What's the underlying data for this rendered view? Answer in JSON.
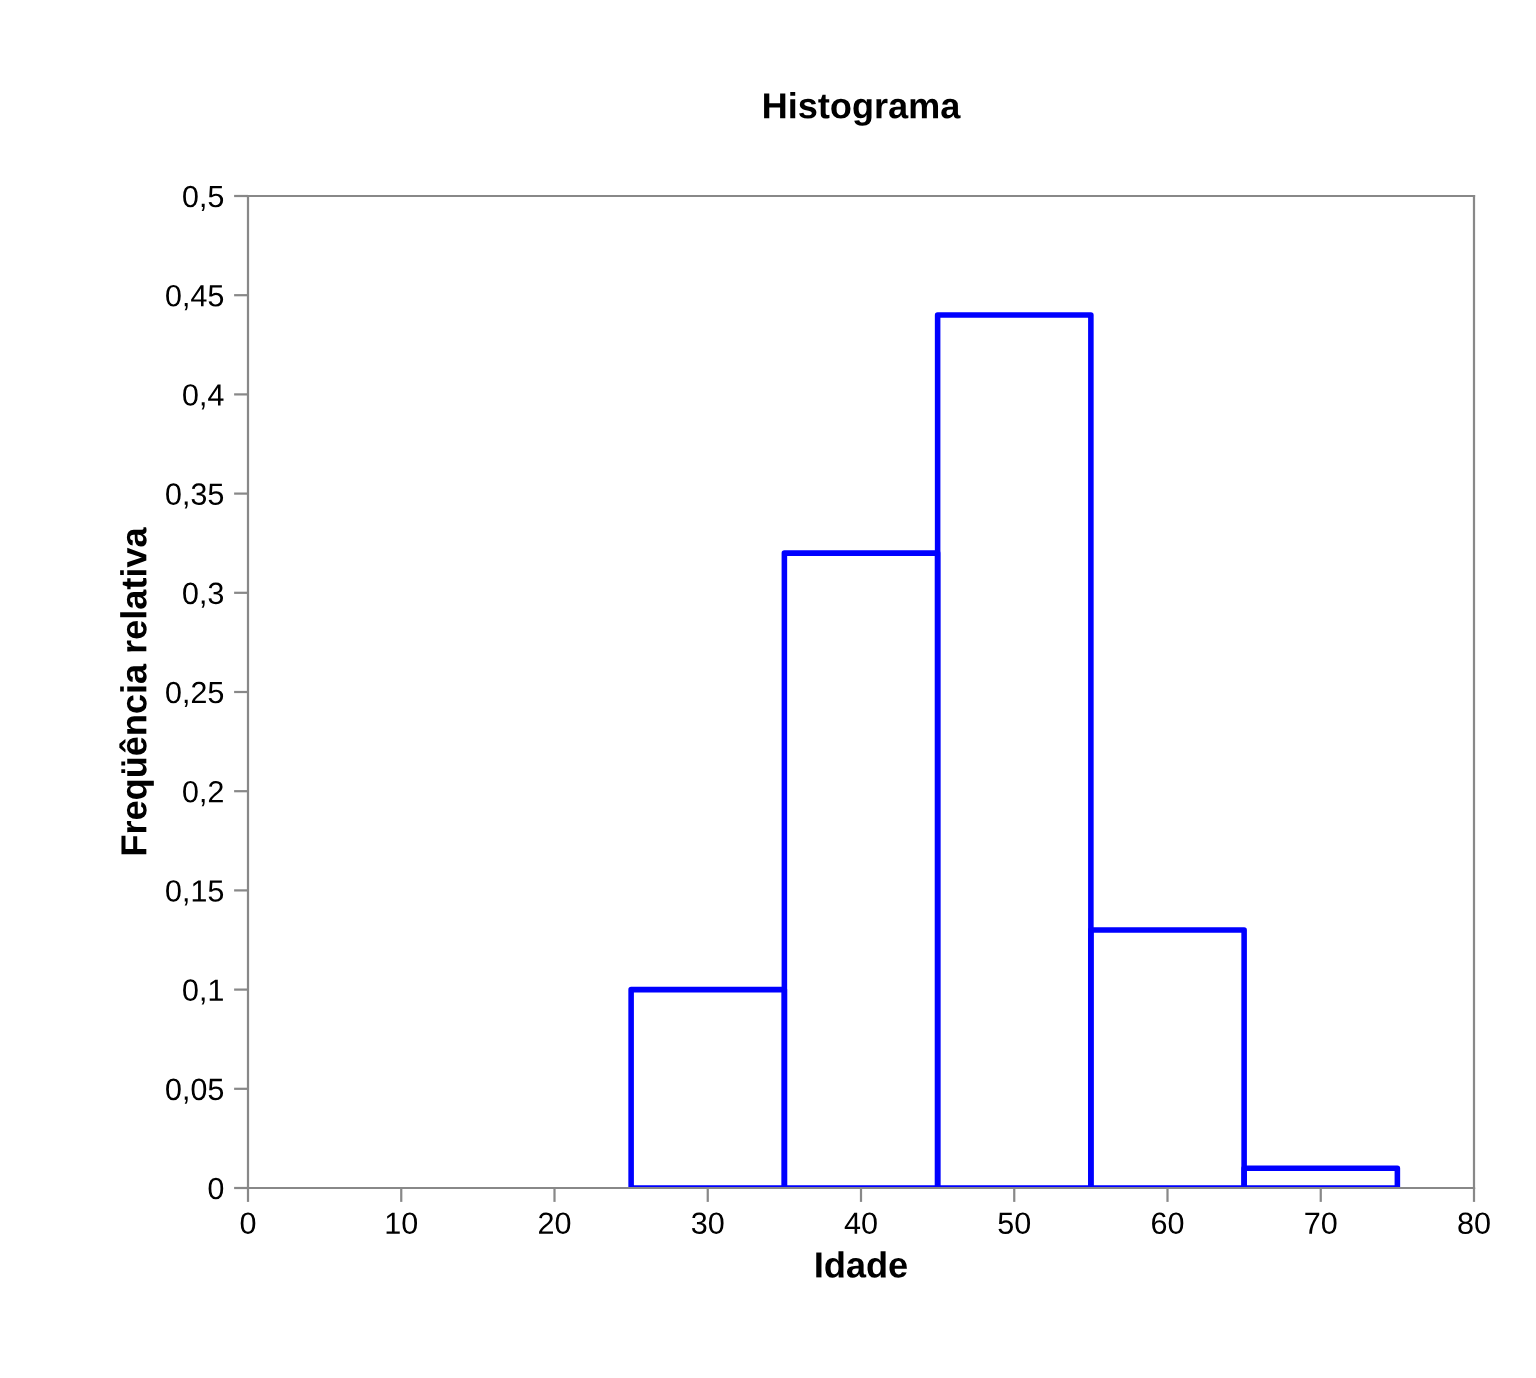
{
  "chart_data": {
    "type": "histogram",
    "title": "Histograma",
    "xlabel": "Idade",
    "ylabel": "Freqüência relativa",
    "bins": [
      25,
      35,
      45,
      55,
      65,
      75
    ],
    "values": [
      0.1,
      0.32,
      0.44,
      0.13,
      0.01
    ],
    "color": "#0000ff",
    "xlim": [
      0,
      80
    ],
    "xticks": [
      0,
      10,
      20,
      30,
      40,
      50,
      60,
      70,
      80
    ],
    "ylim": [
      0,
      0.5
    ],
    "yticks": [
      0,
      {
        "value": 0.05,
        "label": "0,05"
      },
      {
        "value": 0.1,
        "label": "0,1"
      },
      {
        "value": 0.15,
        "label": "0,15"
      },
      {
        "value": 0.2,
        "label": "0,2"
      },
      {
        "value": 0.25,
        "label": "0,25"
      },
      {
        "value": 0.3,
        "label": "0,3"
      },
      {
        "value": 0.35,
        "label": "0,35"
      },
      {
        "value": 0.4,
        "label": "0,4"
      },
      {
        "value": 0.45,
        "label": "0,45"
      },
      {
        "value": 0.5,
        "label": "0,5"
      }
    ],
    "grid": false
  }
}
